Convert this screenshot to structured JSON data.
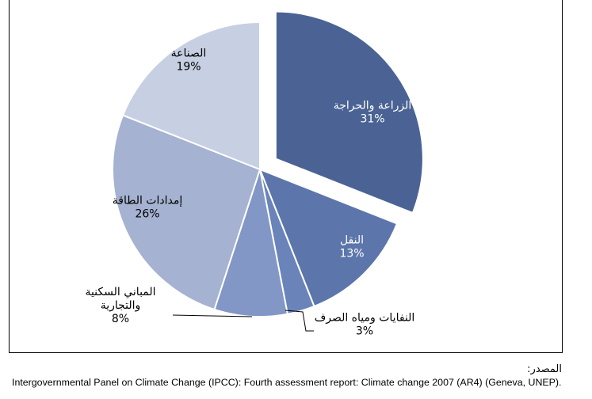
{
  "chart_data": {
    "type": "pie",
    "slices": [
      {
        "label": "الزراعة والحراجة",
        "value": 31,
        "value_label": "31%",
        "color": "#4a6394",
        "exploded": true
      },
      {
        "label": "النقل",
        "value": 13,
        "value_label": "13%",
        "color": "#5c76ab"
      },
      {
        "label": "النفايات ومياه الصرف",
        "value": 3,
        "value_label": "3%",
        "color": "#6a84ba"
      },
      {
        "label": "المباني السكنية والتجارية",
        "value": 8,
        "value_label": "8%",
        "color": "#8297c6"
      },
      {
        "label": "إمدادات الطاقة",
        "value": 26,
        "value_label": "26%",
        "color": "#a5b2d1"
      },
      {
        "label": "الصناعة",
        "value": 19,
        "value_label": "19%",
        "color": "#c7cfe2"
      }
    ]
  },
  "source": {
    "label": "المصدر:",
    "text": "Intergovernmental Panel on Climate Change (IPCC): Fourth assessment report: Climate change 2007 (AR4) (Geneva, UNEP)."
  }
}
